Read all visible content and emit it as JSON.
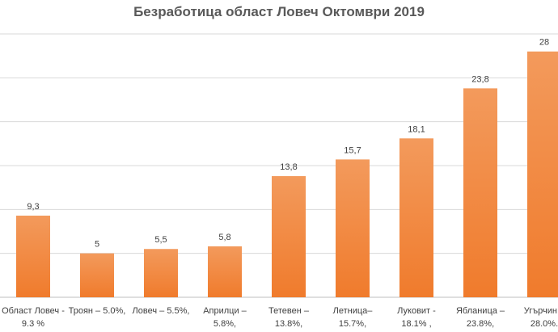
{
  "chart_data": {
    "type": "bar",
    "title": "Безработица област Ловеч Октомври 2019",
    "xlabel": "",
    "ylabel": "",
    "ylim": [
      0,
      30
    ],
    "grid": true,
    "bar_color": "#f07b2c",
    "bar_color_light": "#f39a5c",
    "categories": [
      [
        "Област Ловеч -",
        "9.3 %"
      ],
      [
        "Троян – 5.0%,",
        ""
      ],
      [
        "Ловеч – 5.5%,",
        ""
      ],
      [
        "Априлци –",
        "5.8%,"
      ],
      [
        "Тетевен –",
        "13.8%,"
      ],
      [
        "Летница–",
        "15.7%,"
      ],
      [
        "Луковит -",
        "18.1% ,"
      ],
      [
        "Ябланица –",
        "23.8%,"
      ],
      [
        "Угърчин –",
        "28.0%."
      ]
    ],
    "values": [
      9.3,
      5,
      5.5,
      5.8,
      13.8,
      15.7,
      18.1,
      23.8,
      28
    ],
    "data_labels": [
      "9,3",
      "5",
      "5,5",
      "5,8",
      "13,8",
      "15,7",
      "18,1",
      "23,8",
      "28"
    ]
  }
}
